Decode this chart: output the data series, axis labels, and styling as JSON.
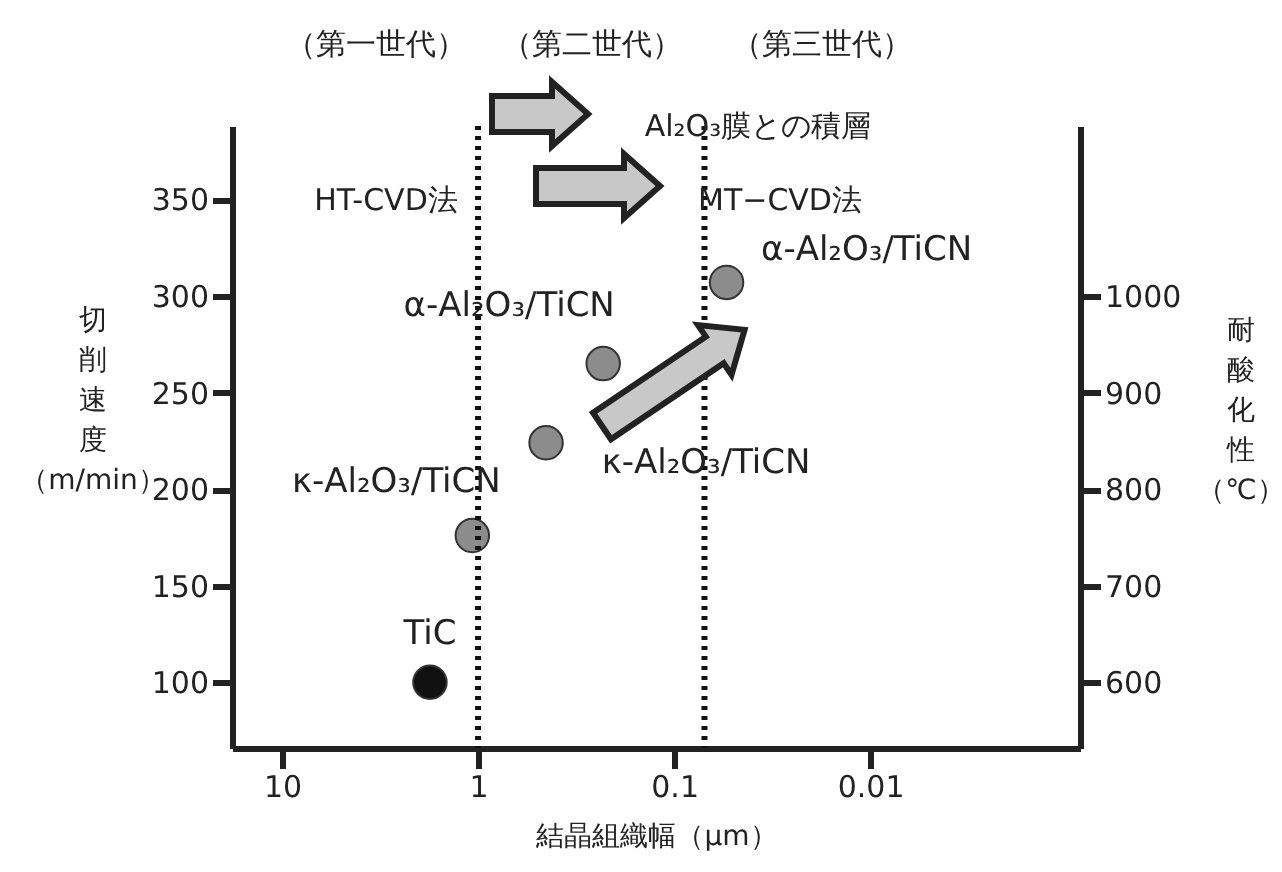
{
  "chart_data": {
    "type": "scatter",
    "xlabel": "結晶組織幅（μm）",
    "ylabel": "切削速度（m/min）",
    "y2label": "耐酸化性（℃）",
    "x": [
      1.76,
      1.07,
      0.45,
      0.23,
      0.054
    ],
    "values": [
      100,
      176,
      224,
      265,
      307
    ],
    "colors": [
      "#111111",
      "#8c8c8c",
      "#8c8c8c",
      "#8c8c8c",
      "#8c8c8c"
    ],
    "log": "x",
    "marker": "circle",
    "grid": false,
    "xlim": [
      18,
      0.00085
    ],
    "xticks": [
      10,
      1,
      0.1,
      0.01
    ],
    "ylim": [
      66,
      388
    ],
    "yticks": [
      100,
      150,
      200,
      250,
      300,
      350
    ],
    "y2lim": [
      532,
      1176
    ],
    "y2ticks": [
      600,
      700,
      800,
      900,
      1000
    ],
    "ref_lines": [
      {
        "axis": "x",
        "value": 1,
        "line_style": "dotted"
      },
      {
        "axis": "x",
        "value": 0.07,
        "line_style": "dotted"
      }
    ],
    "annotations": [
      {
        "text": "TiC",
        "x": 1.76,
        "y": 100
      },
      {
        "text": "κ-Al₂O₃/TiCN",
        "x": 1.07,
        "y": 176
      },
      {
        "text": "κ-Al₂O₃/TiCN",
        "x": 0.45,
        "y": 224
      },
      {
        "text": "α-Al₂O₃/TiCN",
        "x": 0.23,
        "y": 265
      },
      {
        "text": "α-Al₂O₃/TiCN",
        "x": 0.054,
        "y": 307
      },
      "（第一世代）",
      "（第二世代）",
      "（第三世代）",
      "Al₂O₃膜との積層",
      "HT-CVD法",
      "MT−CVD法"
    ]
  }
}
